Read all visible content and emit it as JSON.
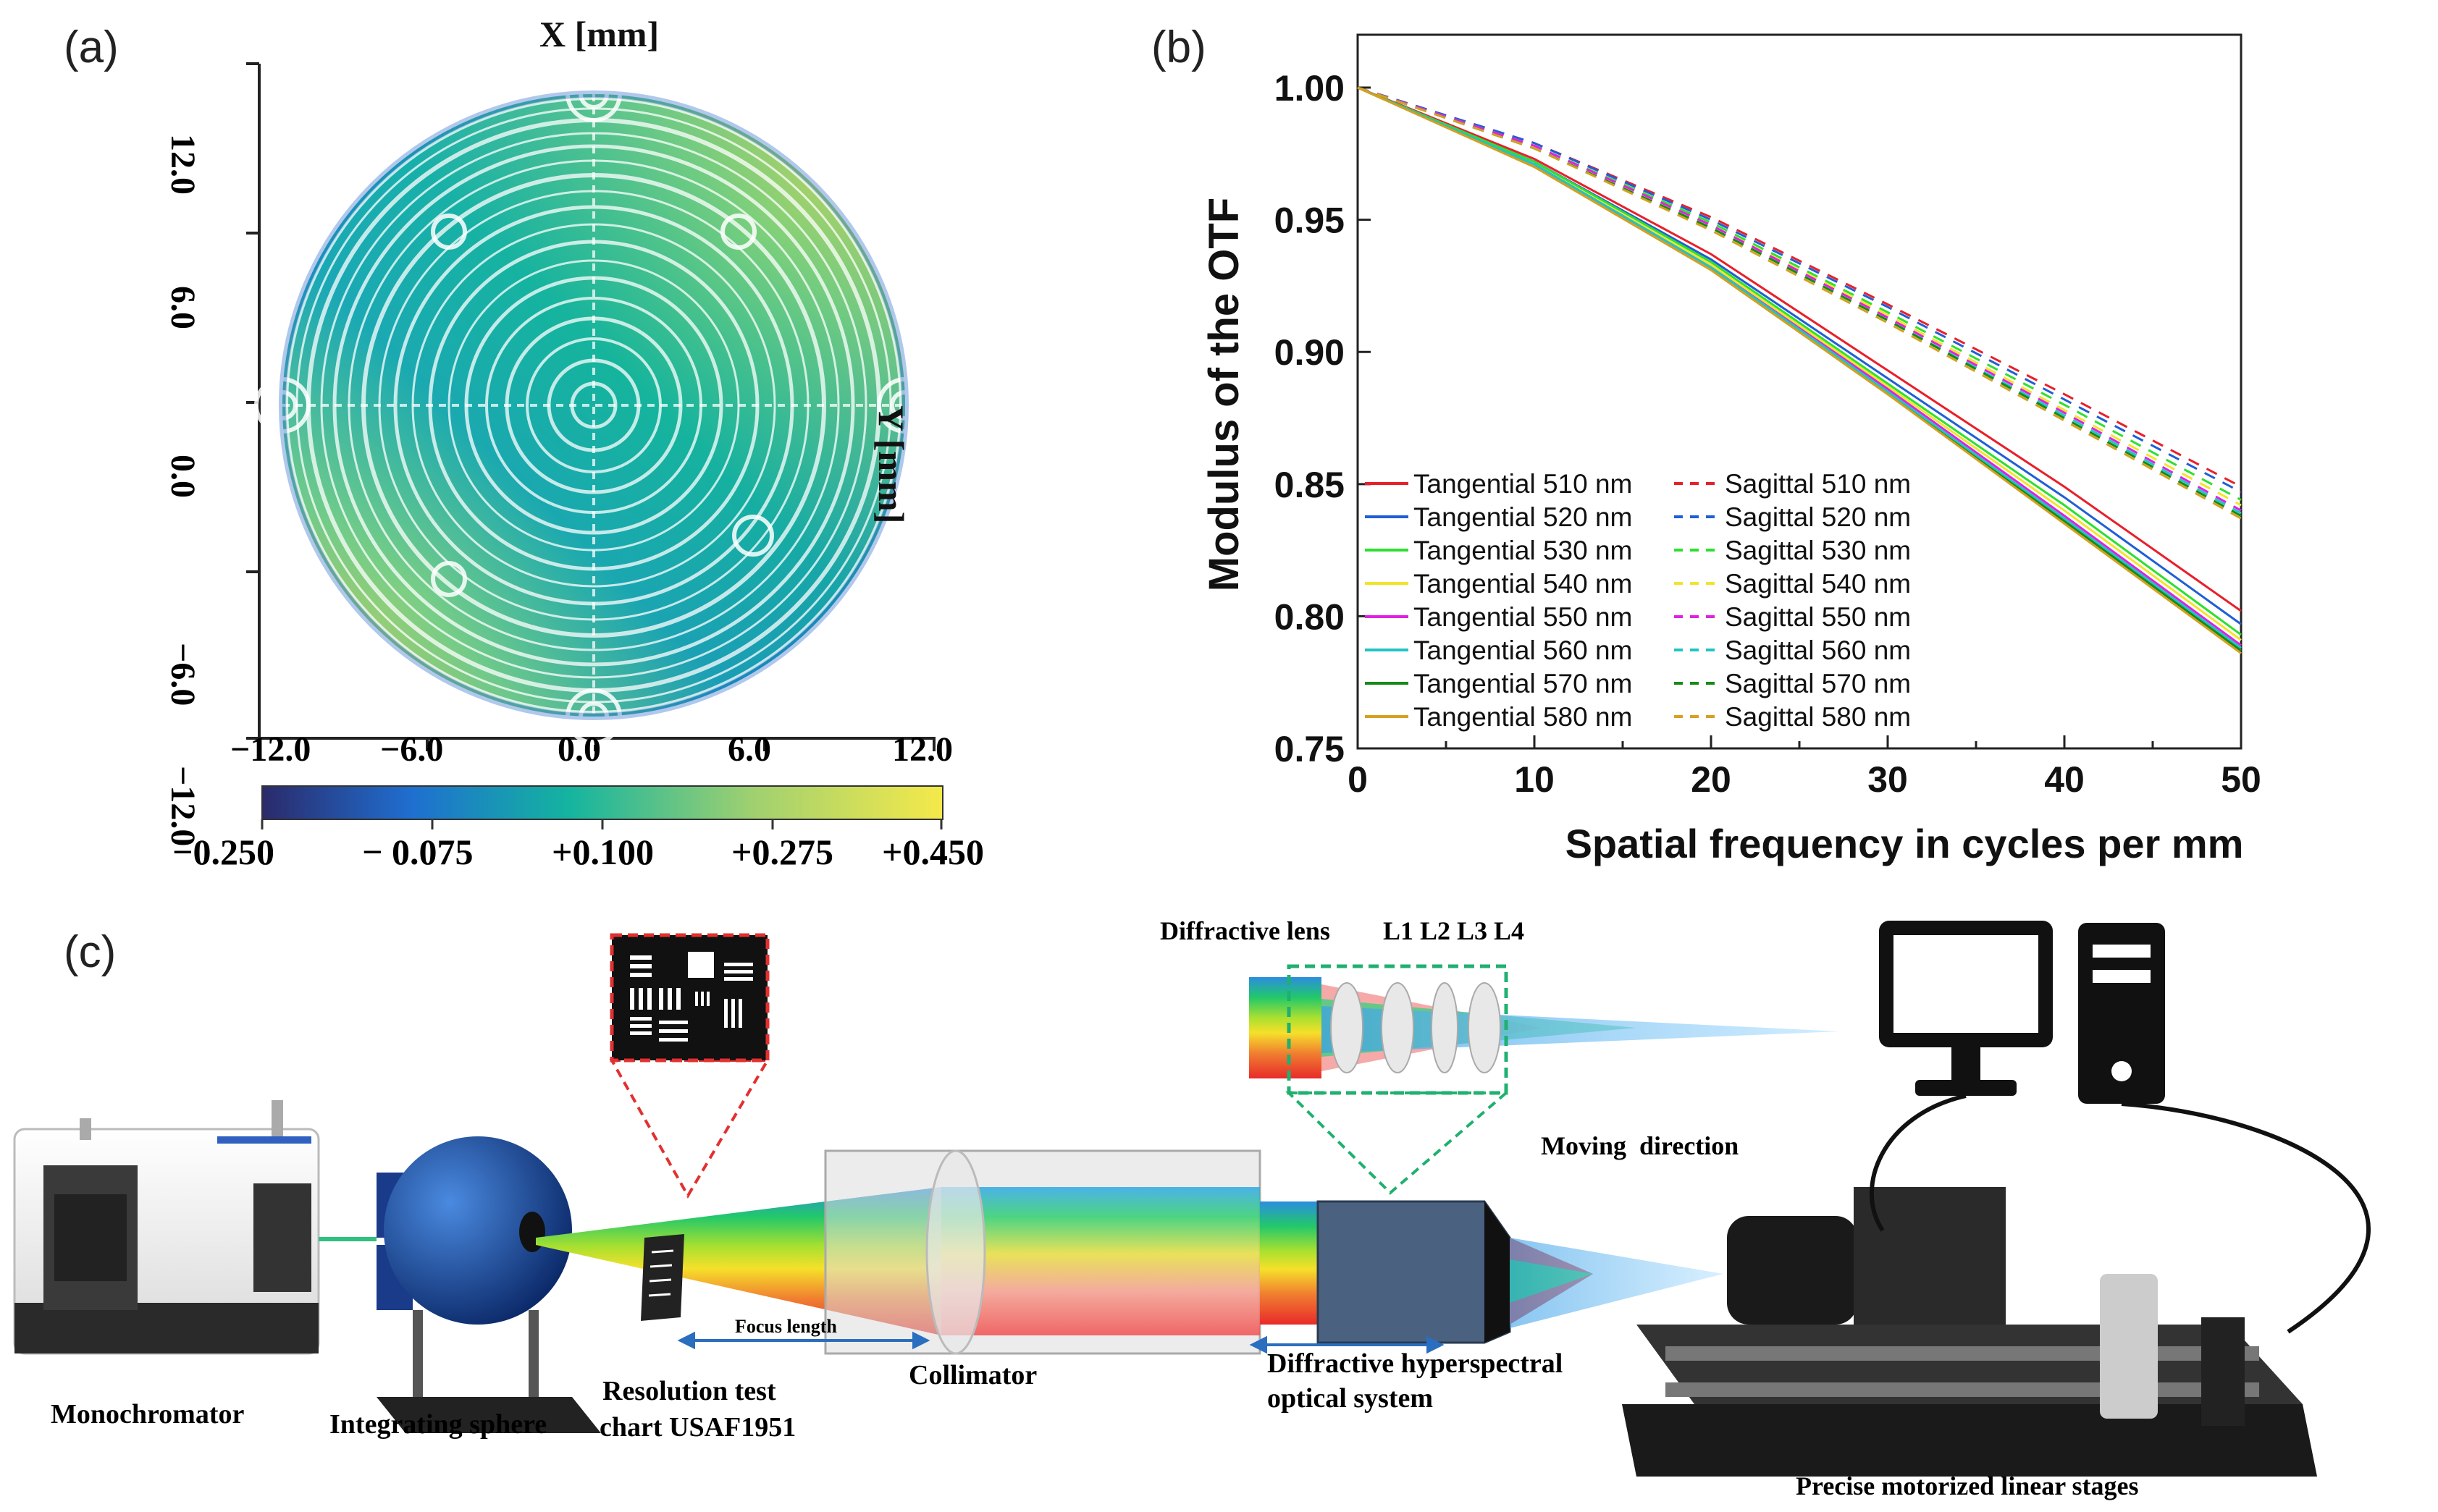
{
  "panel_labels": {
    "a": "(a)",
    "b": "(b)",
    "c": "(c)"
  },
  "panel_a": {
    "x_axis_title": "X [mm]",
    "y_axis_title": "Y [mm]",
    "x_ticks": [
      "−12.0",
      "−6.0",
      "0.0",
      "6.0",
      "12.0"
    ],
    "y_ticks": [
      "12.0",
      "6.0",
      "0.0",
      "−6.0",
      "−12.0"
    ],
    "colorbar_ticks": [
      "−0.250",
      "− 0.075",
      "+0.100",
      "+0.275",
      "+0.450"
    ],
    "colors": {
      "low": "#2b2a6b",
      "mid": "#14b4a0",
      "high": "#f5e94a"
    }
  },
  "chart_data": {
    "type": "line",
    "title": "",
    "xlabel": "Spatial frequency in cycles per mm",
    "ylabel": "Modulus of the OTF",
    "xlim": [
      0,
      50
    ],
    "ylim": [
      0.75,
      1.02
    ],
    "x_ticks": [
      "0",
      "10",
      "20",
      "30",
      "40",
      "50"
    ],
    "y_ticks": [
      "1.00",
      "0.95",
      "0.90",
      "0.85",
      "0.80",
      "0.75"
    ],
    "grid": false,
    "legend_position": "bottom-left",
    "x": [
      0,
      10,
      20,
      30,
      40,
      50
    ],
    "series": [
      {
        "name": "Tangential 510 nm",
        "style": "solid",
        "color": "#e8202a",
        "values": [
          1.0,
          0.973,
          0.937,
          0.893,
          0.849,
          0.802
        ]
      },
      {
        "name": "Sagittal 510 nm",
        "style": "dashed",
        "color": "#e8202a",
        "values": [
          1.0,
          0.979,
          0.951,
          0.918,
          0.884,
          0.849
        ]
      },
      {
        "name": "Tangential 520 nm",
        "style": "solid",
        "color": "#1f5fd6",
        "values": [
          1.0,
          0.972,
          0.935,
          0.89,
          0.845,
          0.797
        ]
      },
      {
        "name": "Sagittal 520 nm",
        "style": "dashed",
        "color": "#1f5fd6",
        "values": [
          1.0,
          0.979,
          0.95,
          0.917,
          0.882,
          0.847
        ]
      },
      {
        "name": "Tangential 530 nm",
        "style": "solid",
        "color": "#2ee02e",
        "values": [
          1.0,
          0.972,
          0.934,
          0.888,
          0.842,
          0.793
        ]
      },
      {
        "name": "Sagittal 530 nm",
        "style": "dashed",
        "color": "#2ee02e",
        "values": [
          1.0,
          0.978,
          0.949,
          0.915,
          0.88,
          0.844
        ]
      },
      {
        "name": "Tangential 540 nm",
        "style": "solid",
        "color": "#f2e42a",
        "values": [
          1.0,
          0.971,
          0.933,
          0.887,
          0.84,
          0.791
        ]
      },
      {
        "name": "Sagittal 540 nm",
        "style": "dashed",
        "color": "#f2e42a",
        "values": [
          1.0,
          0.978,
          0.948,
          0.914,
          0.878,
          0.842
        ]
      },
      {
        "name": "Tangential 550 nm",
        "style": "solid",
        "color": "#e020e0",
        "values": [
          1.0,
          0.971,
          0.932,
          0.886,
          0.838,
          0.789
        ]
      },
      {
        "name": "Sagittal 550 nm",
        "style": "dashed",
        "color": "#e020e0",
        "values": [
          1.0,
          0.978,
          0.948,
          0.913,
          0.877,
          0.84
        ]
      },
      {
        "name": "Tangential 560 nm",
        "style": "solid",
        "color": "#20c4c4",
        "values": [
          1.0,
          0.971,
          0.932,
          0.885,
          0.837,
          0.788
        ]
      },
      {
        "name": "Sagittal 560 nm",
        "style": "dashed",
        "color": "#20c4c4",
        "values": [
          1.0,
          0.977,
          0.947,
          0.912,
          0.876,
          0.839
        ]
      },
      {
        "name": "Tangential 570 nm",
        "style": "solid",
        "color": "#168a16",
        "values": [
          1.0,
          0.97,
          0.931,
          0.884,
          0.836,
          0.787
        ]
      },
      {
        "name": "Sagittal 570 nm",
        "style": "dashed",
        "color": "#168a16",
        "values": [
          1.0,
          0.977,
          0.947,
          0.912,
          0.875,
          0.838
        ]
      },
      {
        "name": "Tangential 580 nm",
        "style": "solid",
        "color": "#d6a020",
        "values": [
          1.0,
          0.97,
          0.931,
          0.884,
          0.835,
          0.786
        ]
      },
      {
        "name": "Sagittal 580 nm",
        "style": "dashed",
        "color": "#d6a020",
        "values": [
          1.0,
          0.977,
          0.946,
          0.911,
          0.874,
          0.837
        ]
      }
    ]
  },
  "panel_c": {
    "labels": {
      "monochromator": "Monochromator",
      "integrating_sphere": "Integrating sphere",
      "chart_line1": "Resolution test",
      "chart_line2": "chart USAF1951",
      "focus_length": "Focus length",
      "collimator": "Collimator",
      "system_line1": "Diffractive hyperspectral",
      "system_line2": "optical system",
      "diffractive_lens": "Diffractive lens",
      "lens_group": "L1 L2 L3 L4",
      "moving_direction": "Moving  direction",
      "stages": "Precise motorized linear stages"
    }
  }
}
